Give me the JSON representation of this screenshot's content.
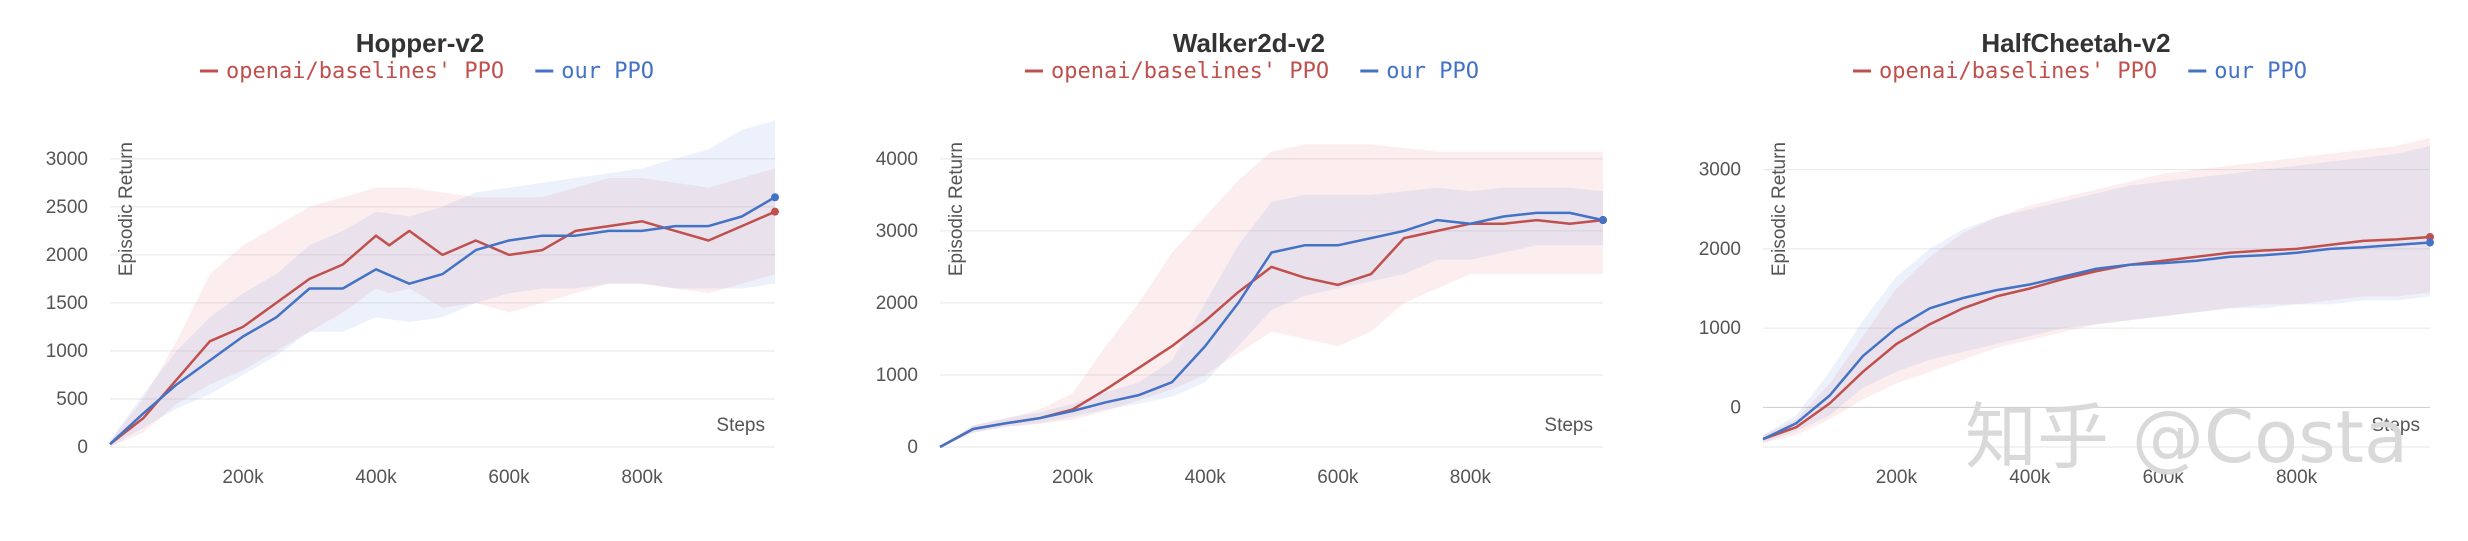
{
  "watermark": "知乎 @Costa",
  "colors": {
    "baseline": "#c0504d",
    "ours": "#4472c4",
    "grid": "#e6e6e6",
    "axis": "#cccccc"
  },
  "chart_data": [
    {
      "type": "line",
      "title": "Hopper-v2",
      "xlabel": "Steps",
      "ylabel": "Episodic Return",
      "xlim": [
        0,
        1000000
      ],
      "ylim": [
        0,
        3300
      ],
      "xticks": [
        200000,
        400000,
        600000,
        800000
      ],
      "xtick_labels": [
        "200k",
        "400k",
        "600k",
        "800k"
      ],
      "yticks": [
        0,
        500,
        1000,
        1500,
        2000,
        2500,
        3000
      ],
      "ytick_labels": [
        "0",
        "500",
        "1000",
        "1500",
        "2000",
        "2500",
        "3000"
      ],
      "legend": [
        "openai/baselines' PPO",
        "our PPO"
      ],
      "series": [
        {
          "name": "openai/baselines' PPO",
          "color": "#c0504d",
          "x": [
            0,
            50000,
            100000,
            150000,
            200000,
            250000,
            300000,
            350000,
            400000,
            420000,
            450000,
            500000,
            550000,
            600000,
            650000,
            700000,
            750000,
            800000,
            850000,
            900000,
            950000,
            1000000
          ],
          "y": [
            30,
            300,
            700,
            1100,
            1250,
            1500,
            1750,
            1900,
            2200,
            2100,
            2250,
            2000,
            2150,
            2000,
            2050,
            2250,
            2300,
            2350,
            2250,
            2150,
            2300,
            2450
          ],
          "upper": [
            60,
            500,
            1100,
            1800,
            2100,
            2300,
            2500,
            2600,
            2700,
            2700,
            2700,
            2650,
            2600,
            2600,
            2600,
            2700,
            2800,
            2800,
            2750,
            2700,
            2800,
            2900
          ],
          "lower": [
            0,
            150,
            450,
            650,
            800,
            1000,
            1200,
            1400,
            1650,
            1600,
            1650,
            1450,
            1500,
            1400,
            1500,
            1600,
            1700,
            1700,
            1650,
            1600,
            1700,
            1800
          ]
        },
        {
          "name": "our PPO",
          "color": "#4472c4",
          "x": [
            0,
            50000,
            100000,
            150000,
            200000,
            250000,
            300000,
            350000,
            400000,
            450000,
            500000,
            550000,
            600000,
            650000,
            700000,
            750000,
            800000,
            850000,
            900000,
            950000,
            1000000
          ],
          "y": [
            30,
            350,
            650,
            900,
            1150,
            1350,
            1650,
            1650,
            1850,
            1700,
            1800,
            2050,
            2150,
            2200,
            2200,
            2250,
            2250,
            2300,
            2300,
            2400,
            2600
          ],
          "upper": [
            60,
            550,
            1000,
            1350,
            1600,
            1800,
            2100,
            2250,
            2450,
            2400,
            2500,
            2650,
            2700,
            2750,
            2800,
            2850,
            2900,
            3000,
            3100,
            3300,
            3400
          ],
          "lower": [
            0,
            200,
            400,
            550,
            750,
            950,
            1200,
            1200,
            1350,
            1300,
            1350,
            1500,
            1600,
            1650,
            1650,
            1700,
            1700,
            1650,
            1650,
            1650,
            1700
          ]
        }
      ]
    },
    {
      "type": "line",
      "title": "Walker2d-v2",
      "xlabel": "Steps",
      "ylabel": "Episodic Return",
      "xlim": [
        0,
        1000000
      ],
      "ylim": [
        0,
        4400
      ],
      "xticks": [
        200000,
        400000,
        600000,
        800000
      ],
      "xtick_labels": [
        "200k",
        "400k",
        "600k",
        "800k"
      ],
      "yticks": [
        0,
        1000,
        2000,
        3000,
        4000
      ],
      "ytick_labels": [
        "0",
        "1000",
        "2000",
        "3000",
        "4000"
      ],
      "legend": [
        "openai/baselines' PPO",
        "our PPO"
      ],
      "series": [
        {
          "name": "openai/baselines' PPO",
          "color": "#c0504d",
          "x": [
            0,
            50000,
            100000,
            150000,
            200000,
            250000,
            300000,
            350000,
            400000,
            450000,
            500000,
            550000,
            600000,
            650000,
            700000,
            750000,
            800000,
            850000,
            900000,
            950000,
            1000000
          ],
          "y": [
            0,
            250,
            330,
            400,
            520,
            800,
            1100,
            1400,
            1750,
            2150,
            2500,
            2350,
            2250,
            2400,
            2900,
            3000,
            3100,
            3100,
            3150,
            3100,
            3150
          ],
          "upper": [
            0,
            300,
            400,
            520,
            750,
            1400,
            2000,
            2700,
            3200,
            3700,
            4100,
            4200,
            4200,
            4200,
            4150,
            4100,
            4100,
            4100,
            4100,
            4100,
            4100
          ],
          "lower": [
            0,
            200,
            280,
            320,
            380,
            500,
            650,
            800,
            1000,
            1300,
            1600,
            1500,
            1400,
            1600,
            2000,
            2200,
            2400,
            2400,
            2400,
            2400,
            2400
          ]
        },
        {
          "name": "our PPO",
          "color": "#4472c4",
          "x": [
            0,
            50000,
            100000,
            150000,
            200000,
            250000,
            300000,
            350000,
            400000,
            450000,
            500000,
            550000,
            600000,
            650000,
            700000,
            750000,
            800000,
            850000,
            900000,
            950000,
            1000000
          ],
          "y": [
            0,
            250,
            330,
            400,
            500,
            620,
            720,
            900,
            1400,
            2000,
            2700,
            2800,
            2800,
            2900,
            3000,
            3150,
            3100,
            3200,
            3250,
            3250,
            3150
          ],
          "upper": [
            0,
            300,
            400,
            480,
            600,
            760,
            900,
            1200,
            2000,
            2800,
            3400,
            3500,
            3500,
            3500,
            3550,
            3600,
            3550,
            3600,
            3600,
            3600,
            3550
          ],
          "lower": [
            0,
            200,
            280,
            330,
            420,
            520,
            600,
            700,
            900,
            1400,
            1900,
            2100,
            2200,
            2300,
            2400,
            2600,
            2600,
            2700,
            2800,
            2800,
            2800
          ]
        }
      ]
    },
    {
      "type": "line",
      "title": "HalfCheetah-v2",
      "xlabel": "Steps",
      "ylabel": "Episodic Return",
      "xlim": [
        0,
        1000000
      ],
      "ylim": [
        -500,
        3500
      ],
      "xticks": [
        200000,
        400000,
        600000,
        800000
      ],
      "xtick_labels": [
        "200k",
        "400k",
        "600k",
        "800k"
      ],
      "yticks": [
        0,
        1000,
        2000,
        3000
      ],
      "ytick_labels": [
        "0",
        "1000",
        "2000",
        "3000"
      ],
      "legend": [
        "openai/baselines' PPO",
        "our PPO"
      ],
      "series": [
        {
          "name": "openai/baselines' PPO",
          "color": "#c0504d",
          "x": [
            0,
            50000,
            100000,
            150000,
            200000,
            250000,
            300000,
            350000,
            400000,
            450000,
            500000,
            550000,
            600000,
            650000,
            700000,
            750000,
            800000,
            850000,
            900000,
            950000,
            1000000
          ],
          "y": [
            -400,
            -250,
            50,
            450,
            800,
            1050,
            1250,
            1400,
            1500,
            1620,
            1720,
            1800,
            1850,
            1900,
            1950,
            1980,
            2000,
            2050,
            2100,
            2120,
            2150
          ],
          "upper": [
            -350,
            -150,
            300,
            900,
            1500,
            1900,
            2200,
            2400,
            2550,
            2650,
            2750,
            2850,
            2950,
            3000,
            3050,
            3100,
            3150,
            3200,
            3250,
            3300,
            3400
          ],
          "lower": [
            -450,
            -350,
            -150,
            100,
            300,
            450,
            600,
            750,
            850,
            950,
            1050,
            1100,
            1150,
            1200,
            1250,
            1300,
            1300,
            1350,
            1400,
            1400,
            1450
          ]
        },
        {
          "name": "our PPO",
          "color": "#4472c4",
          "x": [
            0,
            50000,
            100000,
            150000,
            200000,
            250000,
            300000,
            350000,
            400000,
            450000,
            500000,
            550000,
            600000,
            650000,
            700000,
            750000,
            800000,
            850000,
            900000,
            950000,
            1000000
          ],
          "y": [
            -400,
            -200,
            150,
            650,
            1000,
            1250,
            1380,
            1480,
            1550,
            1650,
            1750,
            1800,
            1820,
            1850,
            1900,
            1920,
            1950,
            2000,
            2020,
            2050,
            2080
          ],
          "upper": [
            -350,
            -100,
            450,
            1100,
            1650,
            2000,
            2250,
            2400,
            2500,
            2600,
            2700,
            2800,
            2850,
            2900,
            2950,
            3000,
            3050,
            3100,
            3150,
            3200,
            3300
          ],
          "lower": [
            -450,
            -300,
            -100,
            250,
            450,
            600,
            700,
            800,
            900,
            1000,
            1050,
            1100,
            1150,
            1200,
            1250,
            1250,
            1300,
            1300,
            1350,
            1350,
            1400
          ]
        }
      ]
    }
  ]
}
